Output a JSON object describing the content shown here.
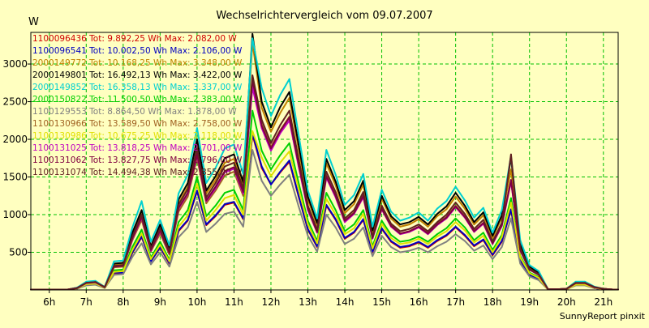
{
  "chart_data": {
    "type": "line",
    "title": "Wechselrichtervergleich vom 09.07.2007",
    "ylabel": "W",
    "xlabel": "",
    "footer": "SunnyReport pinxit",
    "ylim": [
      0,
      3420
    ],
    "xlim": [
      5.5,
      21.4
    ],
    "yticks": [
      500,
      1000,
      1500,
      2000,
      2500,
      3000
    ],
    "xticks": [
      {
        "v": 6,
        "label": "6h"
      },
      {
        "v": 7,
        "label": "7h"
      },
      {
        "v": 8,
        "label": "8h"
      },
      {
        "v": 9,
        "label": "9h"
      },
      {
        "v": 10,
        "label": "10h"
      },
      {
        "v": 11,
        "label": "11h"
      },
      {
        "v": 12,
        "label": "12h"
      },
      {
        "v": 13,
        "label": "13h"
      },
      {
        "v": 14,
        "label": "14h"
      },
      {
        "v": 15,
        "label": "15h"
      },
      {
        "v": 16,
        "label": "16h"
      },
      {
        "v": 17,
        "label": "17h"
      },
      {
        "v": 18,
        "label": "18h"
      },
      {
        "v": 19,
        "label": "19h"
      },
      {
        "v": 20,
        "label": "20h"
      },
      {
        "v": 21,
        "label": "21h"
      }
    ],
    "grid": true,
    "legend_position": "top-left",
    "colors": {
      "background": "#ffffc0",
      "plot_background": "#ffffc0",
      "grid": "#00c000",
      "text": "#000000"
    },
    "x": [
      5.5,
      5.75,
      6.0,
      6.25,
      6.5,
      6.75,
      7.0,
      7.25,
      7.5,
      7.75,
      8.0,
      8.25,
      8.5,
      8.75,
      9.0,
      9.25,
      9.5,
      9.75,
      10.0,
      10.25,
      10.5,
      10.75,
      11.0,
      11.25,
      11.5,
      11.75,
      12.0,
      12.25,
      12.5,
      12.75,
      13.0,
      13.25,
      13.5,
      13.75,
      14.0,
      14.25,
      14.5,
      14.75,
      15.0,
      15.25,
      15.5,
      15.75,
      16.0,
      16.25,
      16.5,
      16.75,
      17.0,
      17.25,
      17.5,
      17.75,
      18.0,
      18.25,
      18.5,
      18.75,
      19.0,
      19.25,
      19.5,
      19.75,
      20.0,
      20.25,
      20.5,
      20.75,
      21.0,
      21.25,
      21.4
    ],
    "series": [
      {
        "name": "1100096436 Tot: 9.892,25 Wh Max: 2.082,00 W",
        "color": "#d00000",
        "values": [
          5,
          5,
          5,
          5,
          5,
          20,
          70,
          80,
          30,
          220,
          230,
          490,
          700,
          380,
          560,
          350,
          780,
          920,
          1310,
          860,
          980,
          1130,
          1160,
          940,
          2060,
          1620,
          1400,
          1560,
          1700,
          1240,
          800,
          570,
          1120,
          930,
          680,
          760,
          930,
          500,
          810,
          640,
          560,
          580,
          630,
          560,
          650,
          720,
          830,
          720,
          580,
          660,
          460,
          640,
          1060,
          390,
          200,
          150,
          5,
          5,
          10,
          65,
          65,
          25,
          10,
          5,
          5
        ]
      },
      {
        "name": "1100096541 Tot: 10.002,50 Wh Max: 2.106,00 W",
        "color": "#0000c0",
        "values": [
          5,
          5,
          5,
          5,
          5,
          20,
          70,
          80,
          30,
          230,
          230,
          500,
          710,
          380,
          570,
          360,
          790,
          930,
          1320,
          870,
          990,
          1140,
          1170,
          950,
          2080,
          1640,
          1400,
          1570,
          1720,
          1250,
          810,
          580,
          1130,
          940,
          690,
          770,
          940,
          510,
          820,
          650,
          570,
          590,
          640,
          570,
          660,
          730,
          840,
          730,
          590,
          670,
          470,
          650,
          1070,
          400,
          200,
          150,
          5,
          5,
          10,
          65,
          65,
          25,
          10,
          5,
          5
        ]
      },
      {
        "name": "2000149772 Tot: 10.168,25 Wh Max: 3.348,00 W",
        "color": "#c08000",
        "values": [
          5,
          5,
          5,
          5,
          5,
          25,
          100,
          110,
          40,
          330,
          350,
          730,
          1030,
          560,
          830,
          520,
          1150,
          1370,
          1950,
          1280,
          1460,
          1690,
          1740,
          1390,
          3280,
          2420,
          2100,
          2350,
          2550,
          1870,
          1200,
          860,
          1680,
          1390,
          1020,
          1140,
          1400,
          760,
          1210,
          950,
          840,
          870,
          940,
          840,
          980,
          1070,
          1240,
          1080,
          870,
          990,
          690,
          960,
          1600,
          590,
          300,
          220,
          10,
          10,
          15,
          100,
          100,
          40,
          15,
          5,
          5
        ]
      },
      {
        "name": "2000149801 Tot: 16.492,13 Wh Max: 3.422,00 W",
        "color": "#000000",
        "values": [
          5,
          5,
          5,
          5,
          5,
          30,
          100,
          110,
          40,
          350,
          360,
          760,
          1060,
          580,
          870,
          540,
          1200,
          1420,
          2000,
          1320,
          1510,
          1750,
          1800,
          1430,
          3400,
          2500,
          2160,
          2430,
          2630,
          1930,
          1240,
          890,
          1740,
          1440,
          1060,
          1180,
          1450,
          790,
          1250,
          980,
          870,
          900,
          970,
          870,
          1010,
          1110,
          1290,
          1120,
          900,
          1030,
          720,
          990,
          1760,
          610,
          310,
          230,
          10,
          10,
          15,
          100,
          100,
          40,
          15,
          5,
          5
        ]
      },
      {
        "name": "2000149852 Tot: 16.358,13 Wh Max: 3.337,00 W",
        "color": "#00d0d0",
        "values": [
          5,
          5,
          5,
          5,
          5,
          30,
          110,
          120,
          40,
          380,
          390,
          830,
          1180,
          640,
          930,
          590,
          1280,
          1530,
          2150,
          1420,
          1620,
          1880,
          1930,
          1540,
          3340,
          2680,
          2310,
          2590,
          2800,
          2060,
          1320,
          950,
          1860,
          1530,
          1130,
          1260,
          1540,
          840,
          1330,
          1040,
          920,
          960,
          1030,
          920,
          1080,
          1180,
          1370,
          1190,
          960,
          1090,
          760,
          1060,
          1780,
          660,
          330,
          250,
          10,
          10,
          15,
          110,
          110,
          45,
          15,
          5,
          5
        ]
      },
      {
        "name": "2000150822 Tot: 11.500,50 Wh Max: 2.383,00 W",
        "color": "#00d000",
        "values": [
          5,
          5,
          5,
          5,
          5,
          20,
          80,
          90,
          30,
          260,
          270,
          570,
          800,
          430,
          640,
          400,
          900,
          1060,
          1500,
          980,
          1120,
          1290,
          1330,
          1060,
          2380,
          1850,
          1600,
          1790,
          1950,
          1420,
          920,
          650,
          1290,
          1060,
          780,
          870,
          1060,
          580,
          920,
          730,
          640,
          660,
          710,
          640,
          740,
          820,
          950,
          830,
          660,
          760,
          530,
          730,
          1220,
          450,
          230,
          170,
          5,
          5,
          10,
          75,
          75,
          30,
          10,
          5,
          5
        ]
      },
      {
        "name": "1100129553 Tot: 8.864,50 Wh Max: 1.878,00 W",
        "color": "#808080",
        "values": [
          5,
          5,
          5,
          5,
          5,
          15,
          60,
          70,
          25,
          200,
          210,
          440,
          620,
          340,
          500,
          310,
          700,
          830,
          1170,
          770,
          880,
          1010,
          1040,
          840,
          1860,
          1450,
          1250,
          1400,
          1530,
          1110,
          720,
          510,
          1000,
          830,
          610,
          680,
          830,
          450,
          720,
          570,
          500,
          520,
          560,
          500,
          580,
          640,
          740,
          650,
          520,
          590,
          410,
          570,
          950,
          350,
          180,
          130,
          5,
          5,
          10,
          60,
          60,
          25,
          10,
          5,
          5
        ]
      },
      {
        "name": "1100130966 Tot: 13.589,50 Wh Max: 2.758,00 W",
        "color": "#a06020",
        "values": [
          5,
          5,
          5,
          5,
          5,
          25,
          90,
          100,
          35,
          300,
          310,
          660,
          930,
          510,
          750,
          470,
          1040,
          1240,
          1750,
          1150,
          1320,
          1520,
          1570,
          1250,
          2750,
          2200,
          1900,
          2120,
          2300,
          1680,
          1080,
          780,
          1520,
          1250,
          920,
          1030,
          1260,
          690,
          1090,
          860,
          750,
          780,
          840,
          760,
          880,
          970,
          1120,
          980,
          780,
          890,
          630,
          870,
          1450,
          530,
          270,
          200,
          10,
          10,
          15,
          90,
          90,
          35,
          15,
          5,
          5
        ]
      },
      {
        "name": "1100130986 Tot: 10.675,25 Wh Max: 2.118,00 W",
        "color": "#e0e000",
        "values": [
          5,
          5,
          5,
          5,
          5,
          20,
          75,
          85,
          30,
          240,
          250,
          530,
          750,
          410,
          600,
          380,
          840,
          990,
          1410,
          920,
          1060,
          1220,
          1260,
          1000,
          2110,
          1760,
          1510,
          1690,
          1840,
          1340,
          870,
          620,
          1210,
          1000,
          740,
          820,
          1010,
          550,
          880,
          690,
          610,
          630,
          680,
          610,
          710,
          780,
          900,
          790,
          630,
          720,
          500,
          700,
          1160,
          430,
          220,
          160,
          5,
          5,
          10,
          70,
          70,
          30,
          10,
          5,
          5
        ]
      },
      {
        "name": "1100131025 Tot: 13.818,25 Wh Max: 2.701,00 W",
        "color": "#c000c0",
        "values": [
          5,
          5,
          5,
          5,
          5,
          25,
          90,
          100,
          35,
          310,
          320,
          680,
          960,
          520,
          780,
          490,
          1080,
          1280,
          1790,
          1180,
          1350,
          1560,
          1610,
          1280,
          2690,
          2150,
          1850,
          2080,
          2250,
          1640,
          1060,
          760,
          1490,
          1230,
          900,
          1010,
          1230,
          680,
          1070,
          840,
          740,
          770,
          830,
          740,
          860,
          950,
          1100,
          960,
          770,
          880,
          610,
          850,
          1440,
          520,
          270,
          200,
          10,
          10,
          15,
          90,
          90,
          35,
          15,
          5,
          5
        ]
      },
      {
        "name": "1100131062 Tot: 13.827,75 Wh Max: 2.796,00 W",
        "color": "#800040",
        "values": [
          5,
          5,
          5,
          5,
          5,
          25,
          95,
          105,
          35,
          310,
          320,
          690,
          970,
          530,
          790,
          490,
          1090,
          1290,
          1810,
          1190,
          1370,
          1580,
          1630,
          1300,
          2790,
          2180,
          1880,
          2110,
          2290,
          1670,
          1080,
          770,
          1510,
          1250,
          920,
          1020,
          1250,
          690,
          1080,
          850,
          750,
          780,
          840,
          750,
          870,
          960,
          1110,
          970,
          780,
          890,
          620,
          860,
          1460,
          530,
          270,
          200,
          10,
          10,
          15,
          90,
          90,
          35,
          15,
          5,
          5
        ]
      },
      {
        "name": "1100131074 Tot: 14.494,38 Wh Max: 2.855,00 W",
        "color": "#602020",
        "values": [
          5,
          5,
          5,
          5,
          5,
          25,
          95,
          105,
          35,
          320,
          330,
          710,
          1000,
          550,
          820,
          510,
          1130,
          1340,
          1880,
          1230,
          1420,
          1640,
          1690,
          1350,
          2850,
          2260,
          1950,
          2190,
          2380,
          1740,
          1120,
          800,
          1570,
          1300,
          950,
          1060,
          1300,
          710,
          1120,
          880,
          780,
          810,
          870,
          780,
          900,
          1000,
          1160,
          1010,
          810,
          930,
          640,
          890,
          1800,
          550,
          280,
          210,
          10,
          10,
          15,
          95,
          95,
          40,
          15,
          5,
          5
        ]
      }
    ]
  }
}
